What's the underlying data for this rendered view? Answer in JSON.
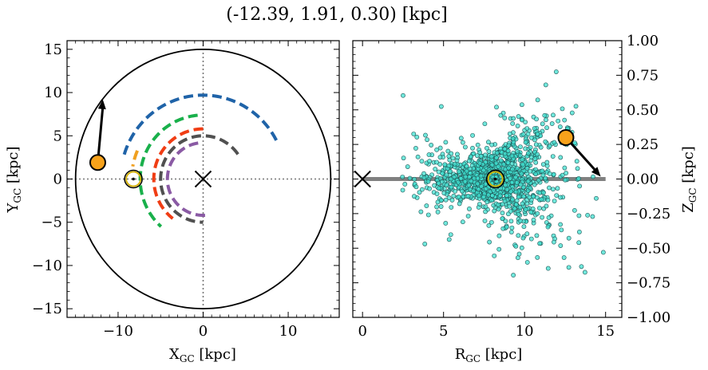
{
  "title": "(-12.39, 1.91, 0.30) [kpc]",
  "chart_data": [
    {
      "type": "line",
      "panel": "left",
      "title": "",
      "xlabel": "X_GC [kpc]",
      "ylabel": "Y_GC [kpc]",
      "xlim": [
        -16,
        16
      ],
      "ylim": [
        -16,
        16
      ],
      "x_ticks": [
        -10,
        0,
        10
      ],
      "y_ticks": [
        -15,
        -10,
        -5,
        0,
        5,
        10,
        15
      ],
      "grid": false,
      "boundary_circle_radius": 15,
      "galactic_center": [
        0,
        0
      ],
      "sun": [
        -8.2,
        0
      ],
      "object": [
        -12.39,
        1.91
      ],
      "object_arrow_to": [
        -11.8,
        9.2
      ],
      "arms": [
        {
          "color": "#1f63a8",
          "arc_radius": 9.7,
          "arc_angles": [
            163,
            25
          ]
        },
        {
          "color": "#19b04b",
          "arc_radius": 7.4,
          "arc_angles": [
            95,
            228
          ]
        },
        {
          "color": "#f0a020",
          "arc_radius": 8.4,
          "arc_angles": [
            157,
            170
          ]
        },
        {
          "color": "#f03d14",
          "arc_radius": 5.8,
          "arc_angles": [
            90,
            232
          ]
        },
        {
          "color": "#8a5aa4",
          "arc_radius": 4.2,
          "arc_angles": [
            98,
            275
          ]
        },
        {
          "color": "#505050",
          "arc_radius": 5.0,
          "arc_angles": [
            35,
            270
          ]
        }
      ]
    },
    {
      "type": "scatter",
      "panel": "right",
      "title": "",
      "xlabel": "R_GC [kpc]",
      "ylabel": "Z_GC [kpc]",
      "xlim": [
        -0.6,
        16
      ],
      "ylim": [
        -1.0,
        1.0
      ],
      "x_ticks": [
        0,
        5,
        10,
        15
      ],
      "y_ticks": [
        "1.00",
        "0.75",
        "0.50",
        "0.25",
        "0.00",
        "−0.25",
        "−0.50",
        "−0.75",
        "−1.00"
      ],
      "grid": false,
      "disk_line": {
        "x": [
          0,
          15
        ],
        "y": 0
      },
      "galactic_center": [
        0,
        0
      ],
      "sun": [
        8.2,
        0
      ],
      "object": [
        12.55,
        0.3
      ],
      "object_arrow_to": [
        14.7,
        0.0
      ],
      "scatter_color": "#40e0d0",
      "scatter_center": [
        8.2,
        0.0
      ],
      "scatter_count": 1300
    }
  ]
}
